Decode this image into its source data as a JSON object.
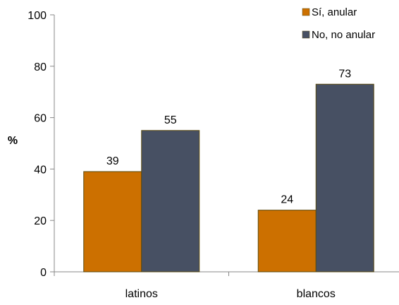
{
  "chart_data": {
    "type": "bar",
    "categories": [
      "latinos",
      "blancos"
    ],
    "series": [
      {
        "name": "Sí, anular",
        "values": [
          39,
          24
        ],
        "color": "#CC7000"
      },
      {
        "name": "No, no anular",
        "values": [
          55,
          73
        ],
        "color": "#475063"
      }
    ],
    "ylabel": "%",
    "ylim": [
      0,
      100
    ],
    "yticks": [
      0,
      20,
      40,
      60,
      80,
      100
    ],
    "grid": false,
    "legend": "top-right"
  }
}
